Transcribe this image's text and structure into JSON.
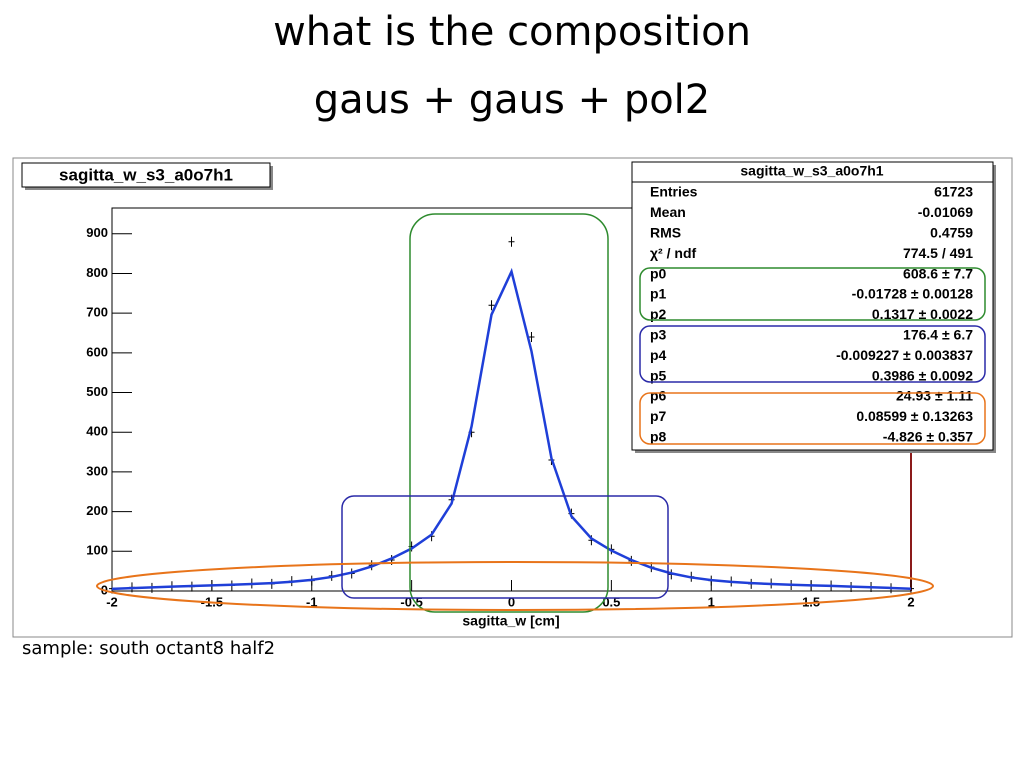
{
  "slide": {
    "title_lines": [
      "what is the composition",
      "gaus + gaus + pol2"
    ],
    "caption": "sample: south octant8 half2"
  },
  "chart_data": {
    "type": "line",
    "title": "sagitta_w_s3_a0o7h1",
    "x_label": "sagitta_w [cm]",
    "xlim": [
      -2,
      2
    ],
    "xticks": [
      -2,
      -1.5,
      -1,
      -0.5,
      0,
      0.5,
      1,
      1.5,
      2
    ],
    "ylim": [
      0,
      965
    ],
    "yticks": [
      0,
      100,
      200,
      300,
      400,
      500,
      600,
      700,
      800,
      900
    ],
    "x": [
      -2,
      -1.9,
      -1.8,
      -1.7,
      -1.6,
      -1.5,
      -1.4,
      -1.3,
      -1.2,
      -1.1,
      -1,
      -0.9,
      -0.8,
      -0.7,
      -0.6,
      -0.5,
      -0.4,
      -0.3,
      -0.2,
      -0.1,
      0,
      0.1,
      0.2,
      0.3,
      0.4,
      0.5,
      0.6,
      0.7,
      0.8,
      0.9,
      1,
      1.1,
      1.2,
      1.3,
      1.4,
      1.5,
      1.6,
      1.7,
      1.8,
      1.9,
      2
    ],
    "series": [
      {
        "kind": "points",
        "color": "#000000",
        "values": [
          6,
          9,
          8,
          12,
          11,
          15,
          14,
          19,
          18,
          25,
          26,
          38,
          44,
          65,
          78,
          112,
          138,
          230,
          400,
          720,
          880,
          640,
          330,
          195,
          128,
          105,
          76,
          60,
          42,
          36,
          26,
          24,
          18,
          19,
          15,
          13,
          14,
          10,
          10,
          7,
          6
        ]
      },
      {
        "kind": "line",
        "color": "#1f3fd8",
        "values": [
          5.5,
          7.3,
          9.1,
          10.9,
          12.5,
          14.1,
          15.8,
          17.6,
          19.9,
          23.2,
          28.0,
          35.4,
          46.4,
          61.8,
          82.0,
          107.1,
          142.1,
          220.4,
          414.5,
          696.5,
          804.7,
          604.1,
          334.5,
          188.5,
          132.3,
          102.0,
          78.1,
          58.8,
          44.4,
          34.2,
          27.3,
          22.9,
          19.9,
          17.7,
          15.9,
          14.3,
          12.8,
          11.1,
          9.4,
          7.7,
          5.8
        ]
      }
    ],
    "stats": [
      {
        "label": "Entries",
        "value": "61723"
      },
      {
        "label": "Mean",
        "value": "-0.01069"
      },
      {
        "label": "RMS",
        "value": "0.4759"
      },
      {
        "label": "χ² / ndf",
        "value": "774.5 / 491"
      },
      {
        "label": "p0",
        "value": "608.6 ± 7.7"
      },
      {
        "label": "p1",
        "value": "-0.01728 ± 0.00128"
      },
      {
        "label": "p2",
        "value": "0.1317 ± 0.0022"
      },
      {
        "label": "p3",
        "value": "176.4 ± 6.7"
      },
      {
        "label": "p4",
        "value": "-0.009227 ± 0.003837"
      },
      {
        "label": "p5",
        "value": "0.3986 ± 0.0092"
      },
      {
        "label": "p6",
        "value": "24.93 ± 1.11"
      },
      {
        "label": "p7",
        "value": "0.08599 ± 0.13263"
      },
      {
        "label": "p8",
        "value": "-4.826 ± 0.357"
      }
    ]
  }
}
